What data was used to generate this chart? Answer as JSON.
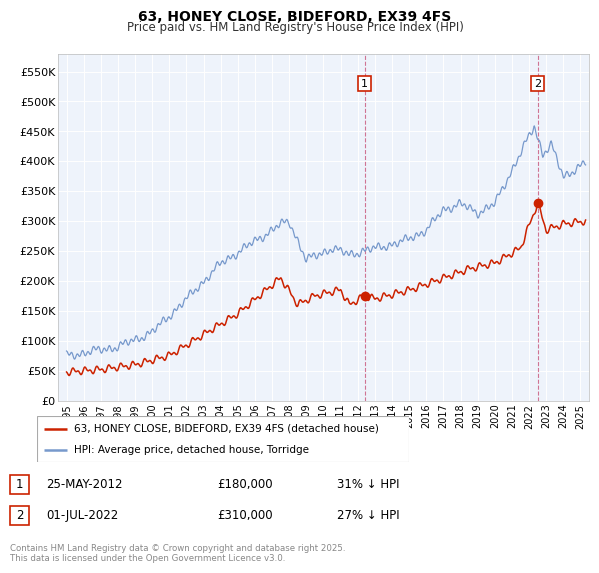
{
  "title": "63, HONEY CLOSE, BIDEFORD, EX39 4FS",
  "subtitle": "Price paid vs. HM Land Registry's House Price Index (HPI)",
  "ylabel_ticks": [
    "£0",
    "£50K",
    "£100K",
    "£150K",
    "£200K",
    "£250K",
    "£300K",
    "£350K",
    "£400K",
    "£450K",
    "£500K",
    "£550K"
  ],
  "ylim": [
    0,
    580000
  ],
  "xlim_start": 1994.5,
  "xlim_end": 2025.5,
  "marker1_x": 2012.4,
  "marker1_y": 180000,
  "marker2_x": 2022.5,
  "marker2_y": 310000,
  "property_color": "#cc2200",
  "hpi_color": "#7799cc",
  "background_color": "#eef3fb",
  "legend_label1": "63, HONEY CLOSE, BIDEFORD, EX39 4FS (detached house)",
  "legend_label2": "HPI: Average price, detached house, Torridge",
  "footnote": "Contains HM Land Registry data © Crown copyright and database right 2025.\nThis data is licensed under the Open Government Licence v3.0.",
  "grid_color": "#ffffff",
  "dashed_line_color": "#cc6688"
}
